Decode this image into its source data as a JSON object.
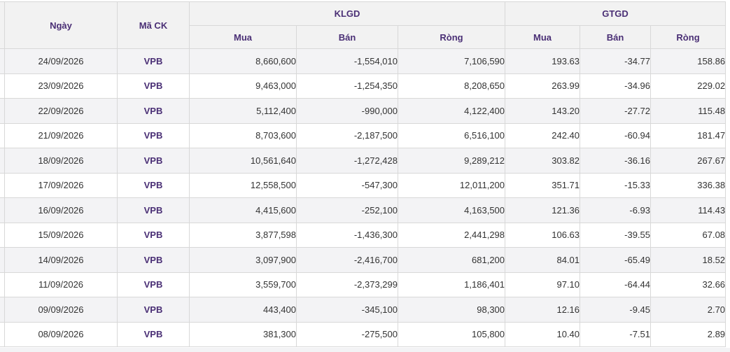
{
  "headers": {
    "date": "Ngày",
    "symbol": "Mã CK",
    "volume_group": "KLGD",
    "value_group": "GTGD",
    "buy": "Mua",
    "sell": "Bán",
    "net": "Ròng"
  },
  "rows": [
    {
      "date": "24/09/2026",
      "symbol": "VPB",
      "vol_buy": "8,660,600",
      "vol_sell": "-1,554,010",
      "vol_net": "7,106,590",
      "val_buy": "193.63",
      "val_sell": "-34.77",
      "val_net": "158.86"
    },
    {
      "date": "23/09/2026",
      "symbol": "VPB",
      "vol_buy": "9,463,000",
      "vol_sell": "-1,254,350",
      "vol_net": "8,208,650",
      "val_buy": "263.99",
      "val_sell": "-34.96",
      "val_net": "229.02"
    },
    {
      "date": "22/09/2026",
      "symbol": "VPB",
      "vol_buy": "5,112,400",
      "vol_sell": "-990,000",
      "vol_net": "4,122,400",
      "val_buy": "143.20",
      "val_sell": "-27.72",
      "val_net": "115.48"
    },
    {
      "date": "21/09/2026",
      "symbol": "VPB",
      "vol_buy": "8,703,600",
      "vol_sell": "-2,187,500",
      "vol_net": "6,516,100",
      "val_buy": "242.40",
      "val_sell": "-60.94",
      "val_net": "181.47"
    },
    {
      "date": "18/09/2026",
      "symbol": "VPB",
      "vol_buy": "10,561,640",
      "vol_sell": "-1,272,428",
      "vol_net": "9,289,212",
      "val_buy": "303.82",
      "val_sell": "-36.16",
      "val_net": "267.67"
    },
    {
      "date": "17/09/2026",
      "symbol": "VPB",
      "vol_buy": "12,558,500",
      "vol_sell": "-547,300",
      "vol_net": "12,011,200",
      "val_buy": "351.71",
      "val_sell": "-15.33",
      "val_net": "336.38"
    },
    {
      "date": "16/09/2026",
      "symbol": "VPB",
      "vol_buy": "4,415,600",
      "vol_sell": "-252,100",
      "vol_net": "4,163,500",
      "val_buy": "121.36",
      "val_sell": "-6.93",
      "val_net": "114.43"
    },
    {
      "date": "15/09/2026",
      "symbol": "VPB",
      "vol_buy": "3,877,598",
      "vol_sell": "-1,436,300",
      "vol_net": "2,441,298",
      "val_buy": "106.63",
      "val_sell": "-39.55",
      "val_net": "67.08"
    },
    {
      "date": "14/09/2026",
      "symbol": "VPB",
      "vol_buy": "3,097,900",
      "vol_sell": "-2,416,700",
      "vol_net": "681,200",
      "val_buy": "84.01",
      "val_sell": "-65.49",
      "val_net": "18.52"
    },
    {
      "date": "11/09/2026",
      "symbol": "VPB",
      "vol_buy": "3,559,700",
      "vol_sell": "-2,373,299",
      "vol_net": "1,186,401",
      "val_buy": "97.10",
      "val_sell": "-64.44",
      "val_net": "32.66"
    },
    {
      "date": "09/09/2026",
      "symbol": "VPB",
      "vol_buy": "443,400",
      "vol_sell": "-345,100",
      "vol_net": "98,300",
      "val_buy": "12.16",
      "val_sell": "-9.45",
      "val_net": "2.70"
    },
    {
      "date": "08/09/2026",
      "symbol": "VPB",
      "vol_buy": "381,300",
      "vol_sell": "-275,500",
      "vol_net": "105,800",
      "val_buy": "10.40",
      "val_sell": "-7.51",
      "val_net": "2.89"
    }
  ],
  "colors": {
    "header_text": "#4a2f75",
    "header_bg": "#f2f2f2",
    "row_alt_bg": "#f3f3f5",
    "grid_line": "#d8d8d8"
  }
}
